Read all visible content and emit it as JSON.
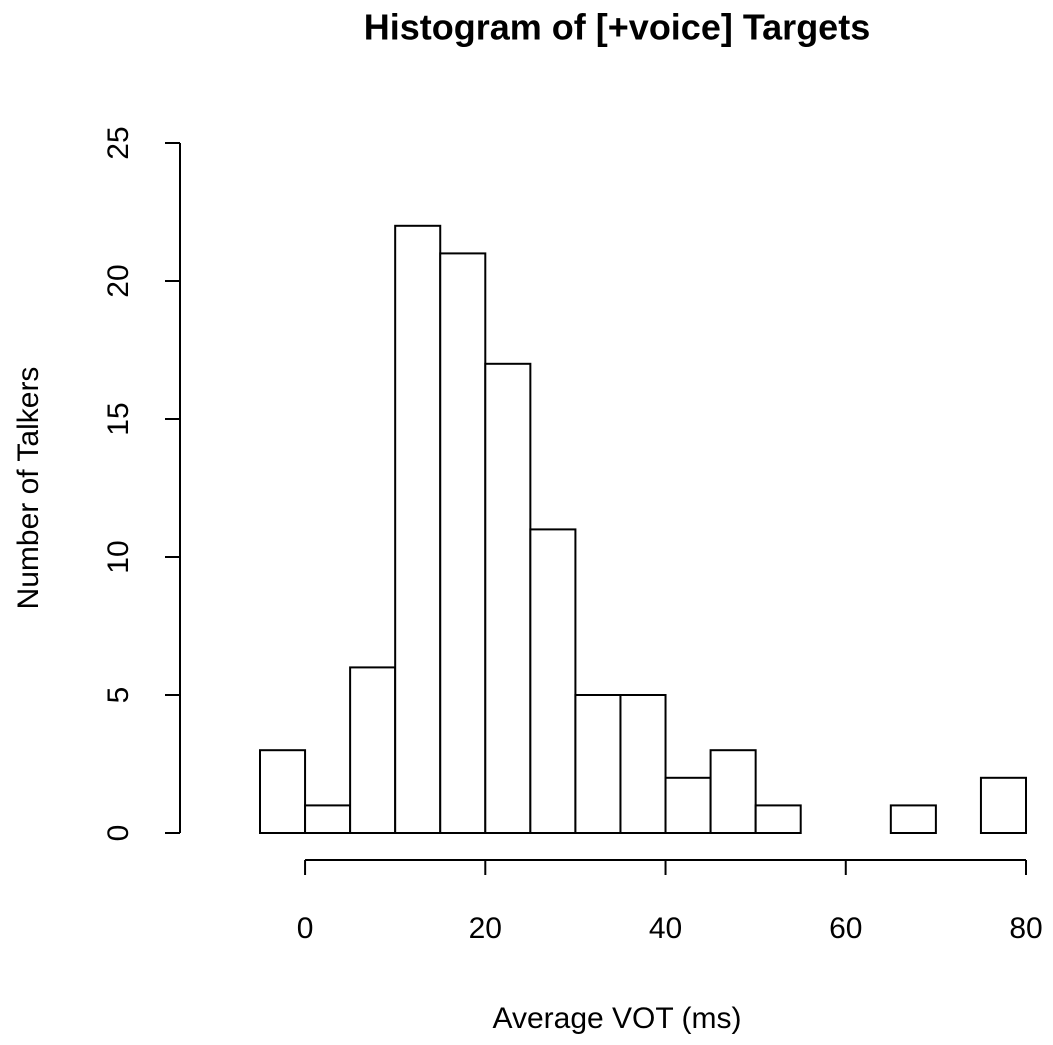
{
  "chart_data": {
    "type": "histogram",
    "title": "Histogram of [+voice] Targets",
    "x_label": "Average VOT (ms)",
    "y_label": "Number of Talkers",
    "bins": [
      -5,
      0,
      5,
      10,
      15,
      20,
      25,
      30,
      35,
      40,
      45,
      50,
      55,
      60,
      65,
      70,
      75,
      80
    ],
    "values": [
      3,
      1,
      6,
      22,
      21,
      17,
      11,
      5,
      5,
      2,
      3,
      1,
      0,
      0,
      1,
      0,
      2
    ],
    "color": "#ffffff",
    "xlim": [
      -5,
      80
    ],
    "xticks": [
      0,
      20,
      40,
      60,
      80
    ],
    "ylim": [
      0,
      25
    ],
    "yticks": [
      0,
      5,
      10,
      15,
      20,
      25
    ],
    "grid": false
  }
}
